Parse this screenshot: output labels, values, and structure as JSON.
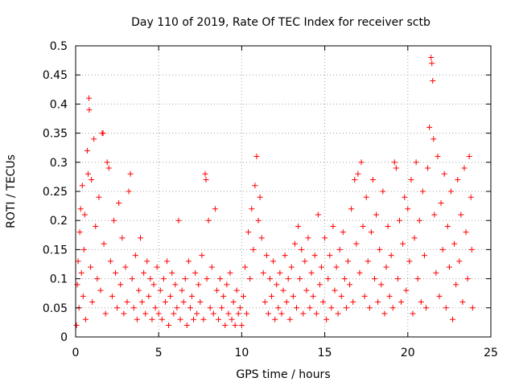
{
  "chart_data": {
    "type": "scatter",
    "title": "Day 110 of 2019, Rate Of TEC Index for receiver sctb",
    "xlabel": "GPS time / hours",
    "ylabel": "ROTI / TECUs",
    "xlim": [
      0,
      25
    ],
    "ylim": [
      0,
      0.5
    ],
    "xticks": [
      0,
      5,
      10,
      15,
      20,
      25
    ],
    "xtick_labels": [
      "0",
      "5",
      "10",
      "15",
      "20",
      "25"
    ],
    "yticks": [
      0,
      0.05,
      0.1,
      0.15,
      0.2,
      0.25,
      0.3,
      0.35,
      0.4,
      0.45,
      0.5
    ],
    "ytick_labels": [
      "0",
      "0.05",
      "0.1",
      "0.15",
      "0.2",
      "0.25",
      "0.3",
      "0.35",
      "0.4",
      "0.45",
      "0.5"
    ],
    "grid": true,
    "marker": "+",
    "marker_color": "#ff0000",
    "series": [
      {
        "name": "ROTI",
        "points": [
          [
            0.05,
            0.02
          ],
          [
            0.1,
            0.09
          ],
          [
            0.15,
            0.13
          ],
          [
            0.2,
            0.05
          ],
          [
            0.25,
            0.18
          ],
          [
            0.3,
            0.22
          ],
          [
            0.35,
            0.11
          ],
          [
            0.4,
            0.26
          ],
          [
            0.45,
            0.07
          ],
          [
            0.5,
            0.15
          ],
          [
            0.55,
            0.21
          ],
          [
            0.6,
            0.03
          ],
          [
            0.7,
            0.32
          ],
          [
            0.75,
            0.28
          ],
          [
            0.8,
            0.41
          ],
          [
            0.82,
            0.39
          ],
          [
            0.9,
            0.12
          ],
          [
            0.95,
            0.27
          ],
          [
            1.0,
            0.06
          ],
          [
            1.1,
            0.34
          ],
          [
            1.2,
            0.19
          ],
          [
            1.3,
            0.1
          ],
          [
            1.4,
            0.24
          ],
          [
            1.5,
            0.08
          ],
          [
            1.6,
            0.35
          ],
          [
            1.65,
            0.35
          ],
          [
            1.7,
            0.16
          ],
          [
            1.8,
            0.04
          ],
          [
            1.9,
            0.3
          ],
          [
            2.0,
            0.29
          ],
          [
            2.1,
            0.13
          ],
          [
            2.2,
            0.07
          ],
          [
            2.3,
            0.2
          ],
          [
            2.4,
            0.11
          ],
          [
            2.5,
            0.05
          ],
          [
            2.6,
            0.23
          ],
          [
            2.7,
            0.09
          ],
          [
            2.8,
            0.17
          ],
          [
            2.9,
            0.04
          ],
          [
            3.0,
            0.12
          ],
          [
            3.1,
            0.06
          ],
          [
            3.2,
            0.25
          ],
          [
            3.3,
            0.28
          ],
          [
            3.4,
            0.1
          ],
          [
            3.5,
            0.05
          ],
          [
            3.6,
            0.14
          ],
          [
            3.7,
            0.03
          ],
          [
            3.8,
            0.08
          ],
          [
            3.9,
            0.17
          ],
          [
            4.0,
            0.06
          ],
          [
            4.1,
            0.11
          ],
          [
            4.2,
            0.04
          ],
          [
            4.3,
            0.13
          ],
          [
            4.4,
            0.07
          ],
          [
            4.5,
            0.1
          ],
          [
            4.6,
            0.03
          ],
          [
            4.7,
            0.09
          ],
          [
            4.8,
            0.05
          ],
          [
            4.9,
            0.12
          ],
          [
            5.0,
            0.04
          ],
          [
            5.1,
            0.08
          ],
          [
            5.2,
            0.03
          ],
          [
            5.3,
            0.1
          ],
          [
            5.4,
            0.06
          ],
          [
            5.5,
            0.13
          ],
          [
            5.6,
            0.02
          ],
          [
            5.7,
            0.07
          ],
          [
            5.8,
            0.11
          ],
          [
            5.9,
            0.04
          ],
          [
            6.0,
            0.09
          ],
          [
            6.1,
            0.05
          ],
          [
            6.2,
            0.2
          ],
          [
            6.3,
            0.03
          ],
          [
            6.4,
            0.08
          ],
          [
            6.5,
            0.06
          ],
          [
            6.6,
            0.1
          ],
          [
            6.7,
            0.02
          ],
          [
            6.8,
            0.13
          ],
          [
            6.9,
            0.05
          ],
          [
            7.0,
            0.07
          ],
          [
            7.1,
            0.03
          ],
          [
            7.2,
            0.11
          ],
          [
            7.3,
            0.04
          ],
          [
            7.4,
            0.09
          ],
          [
            7.5,
            0.06
          ],
          [
            7.6,
            0.14
          ],
          [
            7.7,
            0.03
          ],
          [
            7.8,
            0.28
          ],
          [
            7.85,
            0.27
          ],
          [
            7.9,
            0.1
          ],
          [
            8.0,
            0.2
          ],
          [
            8.1,
            0.05
          ],
          [
            8.2,
            0.12
          ],
          [
            8.3,
            0.04
          ],
          [
            8.4,
            0.22
          ],
          [
            8.5,
            0.08
          ],
          [
            8.6,
            0.03
          ],
          [
            8.7,
            0.1
          ],
          [
            8.8,
            0.05
          ],
          [
            8.9,
            0.07
          ],
          [
            9.0,
            0.02
          ],
          [
            9.1,
            0.09
          ],
          [
            9.2,
            0.04
          ],
          [
            9.3,
            0.11
          ],
          [
            9.4,
            0.03
          ],
          [
            9.5,
            0.06
          ],
          [
            9.6,
            0.02
          ],
          [
            9.7,
            0.08
          ],
          [
            9.8,
            0.04
          ],
          [
            9.9,
            0.05
          ],
          [
            10.0,
            0.02
          ],
          [
            10.1,
            0.07
          ],
          [
            10.2,
            0.12
          ],
          [
            10.3,
            0.04
          ],
          [
            10.4,
            0.18
          ],
          [
            10.5,
            0.1
          ],
          [
            10.6,
            0.22
          ],
          [
            10.7,
            0.15
          ],
          [
            10.8,
            0.26
          ],
          [
            10.9,
            0.31
          ],
          [
            11.0,
            0.2
          ],
          [
            11.1,
            0.24
          ],
          [
            11.2,
            0.17
          ],
          [
            11.3,
            0.11
          ],
          [
            11.4,
            0.06
          ],
          [
            11.5,
            0.14
          ],
          [
            11.6,
            0.04
          ],
          [
            11.7,
            0.1
          ],
          [
            11.8,
            0.07
          ],
          [
            11.9,
            0.13
          ],
          [
            12.0,
            0.03
          ],
          [
            12.1,
            0.09
          ],
          [
            12.2,
            0.05
          ],
          [
            12.3,
            0.11
          ],
          [
            12.4,
            0.04
          ],
          [
            12.5,
            0.08
          ],
          [
            12.6,
            0.14
          ],
          [
            12.7,
            0.06
          ],
          [
            12.8,
            0.1
          ],
          [
            12.9,
            0.03
          ],
          [
            13.0,
            0.12
          ],
          [
            13.1,
            0.07
          ],
          [
            13.2,
            0.16
          ],
          [
            13.3,
            0.05
          ],
          [
            13.4,
            0.19
          ],
          [
            13.5,
            0.1
          ],
          [
            13.6,
            0.15
          ],
          [
            13.7,
            0.04
          ],
          [
            13.8,
            0.13
          ],
          [
            13.9,
            0.08
          ],
          [
            14.0,
            0.17
          ],
          [
            14.1,
            0.05
          ],
          [
            14.2,
            0.11
          ],
          [
            14.3,
            0.07
          ],
          [
            14.4,
            0.14
          ],
          [
            14.5,
            0.04
          ],
          [
            14.6,
            0.21
          ],
          [
            14.7,
            0.09
          ],
          [
            14.8,
            0.12
          ],
          [
            14.9,
            0.06
          ],
          [
            15.0,
            0.17
          ],
          [
            15.1,
            0.03
          ],
          [
            15.2,
            0.1
          ],
          [
            15.3,
            0.14
          ],
          [
            15.4,
            0.05
          ],
          [
            15.5,
            0.19
          ],
          [
            15.6,
            0.08
          ],
          [
            15.7,
            0.12
          ],
          [
            15.8,
            0.04
          ],
          [
            15.9,
            0.15
          ],
          [
            16.0,
            0.07
          ],
          [
            16.1,
            0.18
          ],
          [
            16.2,
            0.1
          ],
          [
            16.3,
            0.05
          ],
          [
            16.4,
            0.13
          ],
          [
            16.5,
            0.09
          ],
          [
            16.6,
            0.22
          ],
          [
            16.7,
            0.06
          ],
          [
            16.8,
            0.27
          ],
          [
            16.9,
            0.16
          ],
          [
            17.0,
            0.28
          ],
          [
            17.1,
            0.11
          ],
          [
            17.2,
            0.3
          ],
          [
            17.3,
            0.19
          ],
          [
            17.4,
            0.07
          ],
          [
            17.5,
            0.24
          ],
          [
            17.6,
            0.13
          ],
          [
            17.7,
            0.05
          ],
          [
            17.8,
            0.18
          ],
          [
            17.9,
            0.27
          ],
          [
            18.0,
            0.1
          ],
          [
            18.1,
            0.21
          ],
          [
            18.2,
            0.06
          ],
          [
            18.3,
            0.15
          ],
          [
            18.4,
            0.09
          ],
          [
            18.5,
            0.25
          ],
          [
            18.6,
            0.04
          ],
          [
            18.7,
            0.12
          ],
          [
            18.8,
            0.19
          ],
          [
            18.9,
            0.07
          ],
          [
            19.0,
            0.14
          ],
          [
            19.1,
            0.05
          ],
          [
            19.2,
            0.3
          ],
          [
            19.3,
            0.29
          ],
          [
            19.4,
            0.1
          ],
          [
            19.5,
            0.2
          ],
          [
            19.6,
            0.06
          ],
          [
            19.7,
            0.16
          ],
          [
            19.8,
            0.24
          ],
          [
            19.9,
            0.08
          ],
          [
            20.0,
            0.22
          ],
          [
            20.1,
            0.13
          ],
          [
            20.2,
            0.27
          ],
          [
            20.3,
            0.04
          ],
          [
            20.4,
            0.17
          ],
          [
            20.5,
            0.3
          ],
          [
            20.6,
            0.1
          ],
          [
            20.7,
            0.2
          ],
          [
            20.8,
            0.06
          ],
          [
            20.9,
            0.25
          ],
          [
            21.0,
            0.14
          ],
          [
            21.1,
            0.05
          ],
          [
            21.2,
            0.29
          ],
          [
            21.3,
            0.36
          ],
          [
            21.4,
            0.48
          ],
          [
            21.45,
            0.47
          ],
          [
            21.5,
            0.44
          ],
          [
            21.55,
            0.34
          ],
          [
            21.6,
            0.21
          ],
          [
            21.7,
            0.11
          ],
          [
            21.8,
            0.31
          ],
          [
            21.9,
            0.07
          ],
          [
            22.0,
            0.23
          ],
          [
            22.1,
            0.15
          ],
          [
            22.2,
            0.28
          ],
          [
            22.3,
            0.05
          ],
          [
            22.4,
            0.19
          ],
          [
            22.5,
            0.12
          ],
          [
            22.6,
            0.25
          ],
          [
            22.7,
            0.03
          ],
          [
            22.8,
            0.16
          ],
          [
            22.9,
            0.09
          ],
          [
            23.0,
            0.27
          ],
          [
            23.1,
            0.13
          ],
          [
            23.2,
            0.21
          ],
          [
            23.3,
            0.06
          ],
          [
            23.4,
            0.29
          ],
          [
            23.5,
            0.18
          ],
          [
            23.6,
            0.1
          ],
          [
            23.7,
            0.31
          ],
          [
            23.8,
            0.24
          ],
          [
            23.85,
            0.15
          ],
          [
            23.9,
            0.05
          ]
        ]
      }
    ]
  }
}
